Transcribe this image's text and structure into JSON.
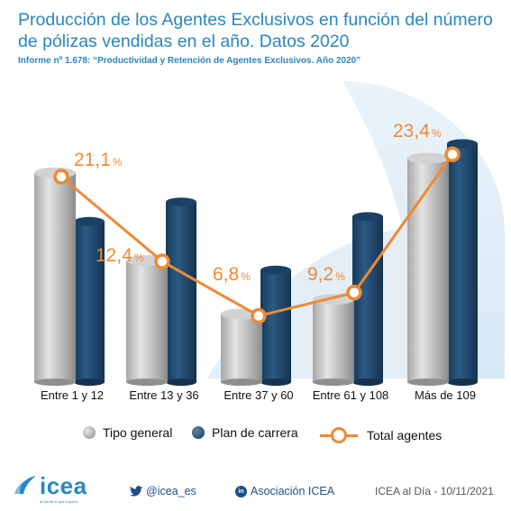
{
  "chart_data": {
    "type": "bar",
    "title": "Producción de los Agentes Exclusivos en función del número de pólizas vendidas en el año. Datos 2020",
    "subtitle": "Informe nº 1.678: “Productividad y Retención de Agentes Exclusivos. Año 2020”",
    "categories": [
      "Entre 1 y 12",
      "Entre 13 y 36",
      "Entre 37 y 60",
      "Entre 61 y 108",
      "Más de 109"
    ],
    "ylim": [
      0,
      30
    ],
    "series": [
      {
        "name": "Tipo general",
        "kind": "bar",
        "color": "#b9b9b9",
        "values": [
          21.5,
          12.5,
          7.0,
          8.5,
          23.0
        ]
      },
      {
        "name": "Plan de carrera",
        "kind": "bar",
        "color": "#1e4a70",
        "values": [
          16.5,
          18.5,
          11.5,
          17.0,
          24.5
        ]
      },
      {
        "name": "Total agentes",
        "kind": "line",
        "color": "#ee8a35",
        "values": [
          21.1,
          12.4,
          6.8,
          9.2,
          23.4
        ],
        "labels": [
          {
            "num": "21,1",
            "unit": "%"
          },
          {
            "num": "12,4",
            "unit": "%"
          },
          {
            "num": "6,8",
            "unit": "%"
          },
          {
            "num": "9,2",
            "unit": "%"
          },
          {
            "num": "23,4",
            "unit": "%"
          }
        ]
      }
    ],
    "legend_position": "bottom",
    "grid": false
  },
  "footer": {
    "logo": "icea",
    "tagline": "al día de lo que importa",
    "twitter": "@icea_es",
    "linkedin_icon_text": "in",
    "linkedin": "Asociación ICEA",
    "source": "ICEA al Día - 10/11/2021"
  }
}
